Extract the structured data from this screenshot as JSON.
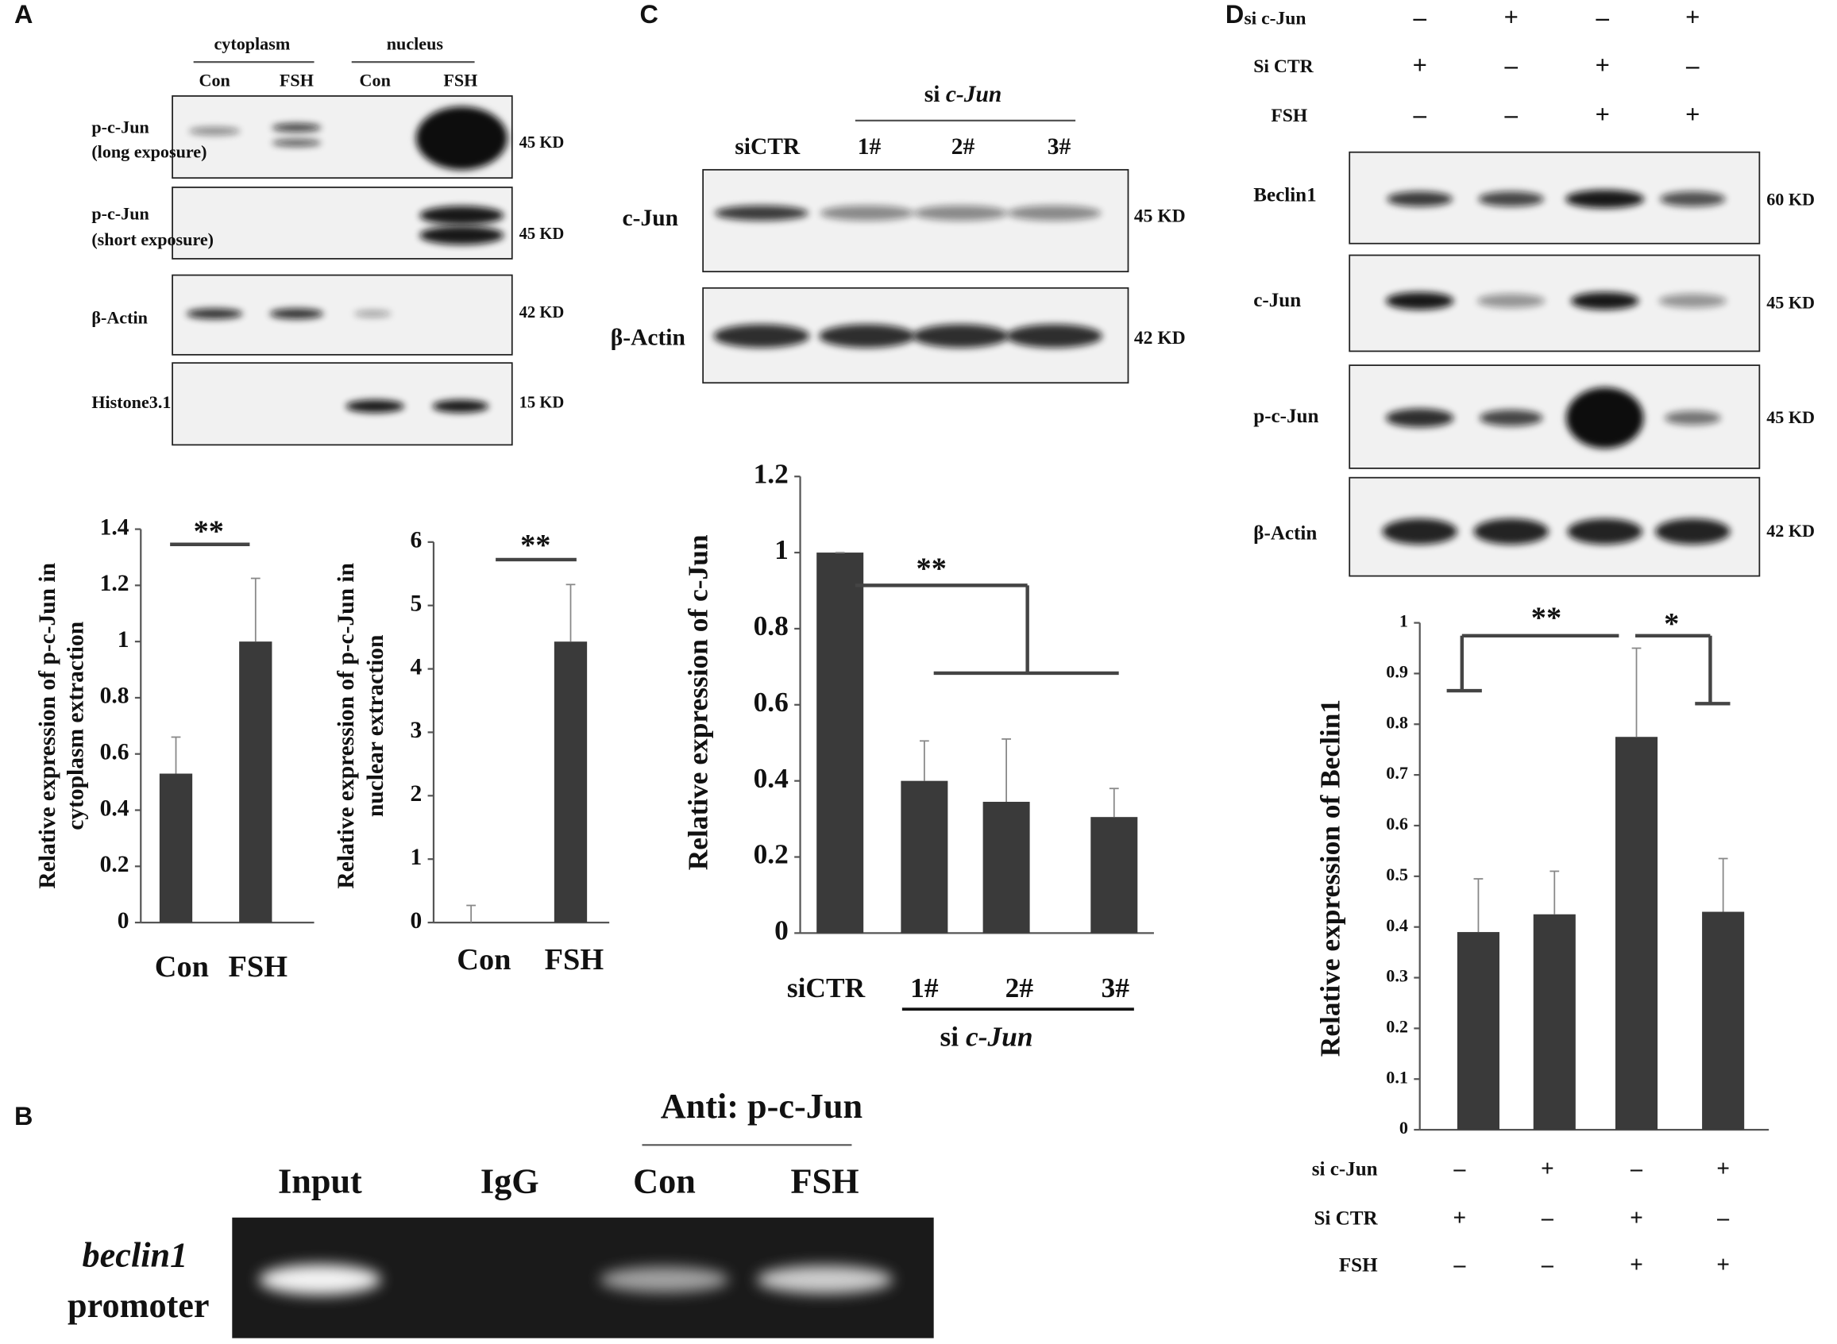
{
  "panels": {
    "A": {
      "letter": "A",
      "groups": [
        "cytoplasm",
        "nucleus"
      ],
      "lanes": [
        "Con",
        "FSH",
        "Con",
        "FSH"
      ],
      "rows": [
        [
          "p-c-Jun",
          "(long exposure)"
        ],
        [
          "p-c-Jun",
          "(short exposure)"
        ],
        [
          "β-Actin"
        ],
        [
          "Histone3.1"
        ]
      ],
      "sizes": [
        "45 KD",
        "45 KD",
        "42 KD",
        "15 KD"
      ]
    },
    "B": {
      "letter": "B",
      "antibody": "Anti: p-c-Jun",
      "lanes": [
        "Input",
        "IgG",
        "Con",
        "FSH"
      ],
      "row": [
        "beclin1",
        "promoter"
      ]
    },
    "C": {
      "letter": "C",
      "group": [
        "si",
        "c-Jun"
      ],
      "lanes": [
        "siCTR",
        "1#",
        "2#",
        "3#"
      ],
      "rows": [
        "c-Jun",
        "β-Actin"
      ],
      "sizes": [
        "45 KD",
        "42 KD"
      ]
    },
    "D": {
      "letter": "D",
      "conditions": [
        {
          "label": "si c-Jun",
          "signs": [
            "–",
            "+",
            "–",
            "+"
          ]
        },
        {
          "label": "Si CTR",
          "signs": [
            "+",
            "–",
            "+",
            "–"
          ]
        },
        {
          "label": "FSH",
          "signs": [
            "–",
            "–",
            "+",
            "+"
          ]
        }
      ],
      "rows": [
        "Beclin1",
        "c-Jun",
        "p-c-Jun",
        "β-Actin"
      ],
      "sizes": [
        "60 KD",
        "45 KD",
        "45 KD",
        "42 KD"
      ]
    }
  },
  "chart_data": [
    {
      "type": "bar",
      "ylabel": [
        "Relative expression of p-c-Jun in",
        "cytoplasm extraction"
      ],
      "categories": [
        "Con",
        "FSH"
      ],
      "values": [
        0.53,
        1.0
      ],
      "errors": [
        0.13,
        0.225
      ],
      "color": "#3a3a3a",
      "ylim": [
        0,
        1.4
      ],
      "yticks": [
        0,
        0.2,
        0.4,
        0.6,
        0.8,
        1,
        1.2,
        1.4
      ],
      "annotations": [
        "**"
      ]
    },
    {
      "type": "bar",
      "ylabel": [
        "Relative expression of p-c-Jun in",
        "nuclear extraction"
      ],
      "categories": [
        "Con",
        "FSH"
      ],
      "values": [
        0,
        4.43
      ],
      "errors": [
        0.27,
        0.9
      ],
      "color": "#3a3a3a",
      "ylim": [
        0,
        6
      ],
      "yticks": [
        0,
        1,
        2,
        3,
        4,
        5,
        6
      ],
      "annotations": [
        "**"
      ]
    },
    {
      "type": "bar",
      "ylabel": [
        "Relative expression of c-Jun"
      ],
      "categories": [
        "siCTR",
        "1#",
        "2#",
        "3#"
      ],
      "group_label": [
        "si",
        "c-Jun"
      ],
      "values": [
        1.0,
        0.4,
        0.345,
        0.305
      ],
      "errors": [
        0,
        0.105,
        0.165,
        0.075
      ],
      "color": "#3a3a3a",
      "ylim": [
        0,
        1.2
      ],
      "yticks": [
        0,
        0.2,
        0.4,
        0.6,
        0.8,
        1,
        1.2
      ],
      "annotations": [
        "**"
      ]
    },
    {
      "type": "bar",
      "ylabel": [
        "Relative expression of Beclin1"
      ],
      "categories": [
        null,
        null,
        null,
        null
      ],
      "conditions": [
        {
          "label": "si c-Jun",
          "signs": [
            "–",
            "+",
            "–",
            "+"
          ]
        },
        {
          "label": "Si CTR",
          "signs": [
            "+",
            "–",
            "+",
            "–"
          ]
        },
        {
          "label": "FSH",
          "signs": [
            "–",
            "–",
            "+",
            "+"
          ]
        }
      ],
      "values": [
        0.39,
        0.425,
        0.775,
        0.43
      ],
      "errors": [
        0.105,
        0.085,
        0.175,
        0.105
      ],
      "color": "#3a3a3a",
      "ylim": [
        0,
        1
      ],
      "yticks": [
        0,
        0.1,
        0.2,
        0.3,
        0.4,
        0.5,
        0.6,
        0.7,
        0.8,
        0.9,
        1
      ],
      "annotations": [
        "**",
        "*"
      ]
    }
  ]
}
